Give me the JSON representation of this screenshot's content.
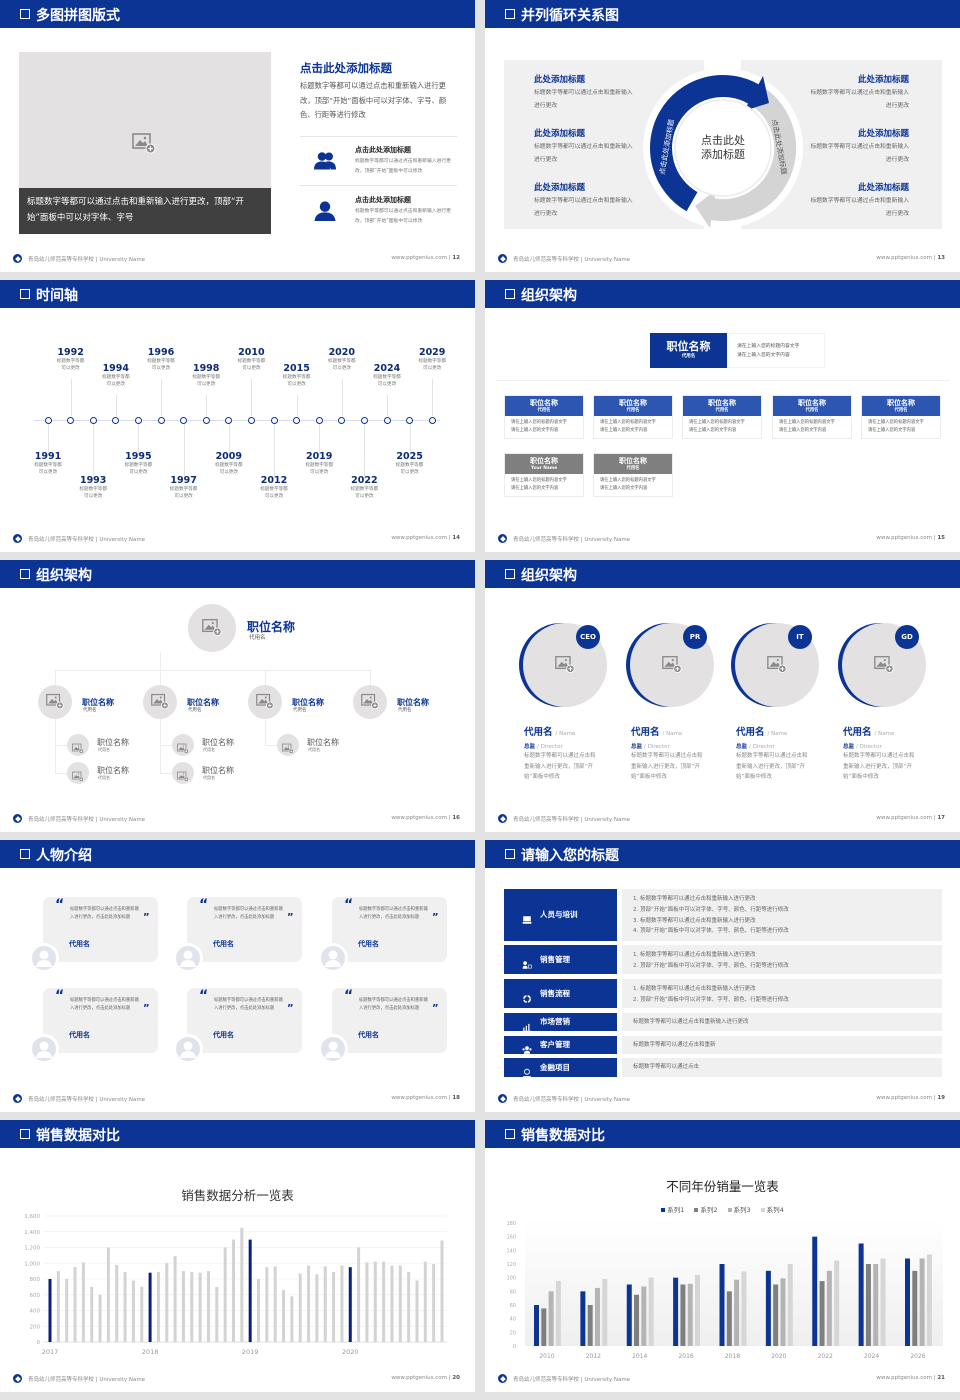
{
  "footer": {
    "school": "青岛幼儿师范高等专科学校 | University Name",
    "site": "www.pptgenius.com"
  },
  "colors": {
    "brand": "#0c3495",
    "header": "#0c3495",
    "panel": "#f0f0f0",
    "caption_bg": "#404040",
    "gray_box": "#7f7f7f"
  },
  "slides": [
    {
      "title": "多图拼图版式",
      "page": "12",
      "photo_caption": "标题数字等都可以通过点击和重新输入进行更改，顶部“开始”面板中可以对字体、字号",
      "heading": "点击此处添加标题",
      "paragraph": "标题数字等都可以通过点击和重新输入进行更改，顶部“开始”面板中可以对字体、字号、颜色、行距等进行修改",
      "items": [
        {
          "icon": "users-icon",
          "title": "点击此处添加标题",
          "desc": "标题数字等都可以通过点击和重新输入进行更改，顶部“开始”面板中可以修改"
        },
        {
          "icon": "user-icon",
          "title": "点击此处添加标题",
          "desc": "标题数字等都可以通过点击和重新输入进行更改，顶部“开始”面板中可以修改"
        }
      ]
    },
    {
      "title": "并列循环关系图",
      "page": "13",
      "center_line1": "点击此处",
      "center_line2": "添加标题",
      "arc_left": "点击此处添加标题",
      "arc_right": "点击此处添加标题",
      "left_items": [
        {
          "title": "此处添加标题",
          "desc": "标题数字等都可以通过点击和重新输入进行更改"
        },
        {
          "title": "此处添加标题",
          "desc": "标题数字等都可以通过点击和重新输入进行更改"
        },
        {
          "title": "此处添加标题",
          "desc": "标题数字等都可以通过点击和重新输入进行更改"
        }
      ],
      "right_items": [
        {
          "title": "此处添加标题",
          "desc": "标题数字等都可以通过点击和重新输入进行更改"
        },
        {
          "title": "此处添加标题",
          "desc": "标题数字等都可以通过点击和重新输入进行更改"
        },
        {
          "title": "此处添加标题",
          "desc": "标题数字等都可以通过点击和重新输入进行更改"
        }
      ]
    },
    {
      "title": "时间轴",
      "page": "14",
      "events": [
        {
          "year": "1991",
          "desc1": "标题数字等都",
          "desc2": "可以更改"
        },
        {
          "year": "1992",
          "desc1": "标题数字等都",
          "desc2": "可以更改"
        },
        {
          "year": "1993",
          "desc1": "标题数字等都",
          "desc2": "可以更改"
        },
        {
          "year": "1994",
          "desc1": "标题数字等都",
          "desc2": "可以更改"
        },
        {
          "year": "1995",
          "desc1": "标题数字等都",
          "desc2": "可以更改"
        },
        {
          "year": "1996",
          "desc1": "标题数字等都",
          "desc2": "可以更改"
        },
        {
          "year": "1997",
          "desc1": "标题数字等都",
          "desc2": "可以更改"
        },
        {
          "year": "1998",
          "desc1": "标题数字等都",
          "desc2": "可以更改"
        },
        {
          "year": "2009",
          "desc1": "标题数字等都",
          "desc2": "可以更改"
        },
        {
          "year": "2010",
          "desc1": "标题数字等都",
          "desc2": "可以更改"
        },
        {
          "year": "2012",
          "desc1": "标题数字等都",
          "desc2": "可以更改"
        },
        {
          "year": "2015",
          "desc1": "标题数字等都",
          "desc2": "可以更改"
        },
        {
          "year": "2019",
          "desc1": "标题数字等都",
          "desc2": "可以更改"
        },
        {
          "year": "2020",
          "desc1": "标题数字等都",
          "desc2": "可以更改"
        },
        {
          "year": "2022",
          "desc1": "标题数字等都",
          "desc2": "可以更改"
        },
        {
          "year": "2024",
          "desc1": "标题数字等都",
          "desc2": "可以更改"
        },
        {
          "year": "2025",
          "desc1": "标题数字等都",
          "desc2": "可以更改"
        },
        {
          "year": "2029",
          "desc1": "标题数字等都",
          "desc2": "可以更改"
        }
      ]
    },
    {
      "title": "组织架构",
      "page": "15",
      "top": {
        "title": "职位名称",
        "sub": "代用名",
        "desc1": "请在上输入您的标题内容文字",
        "desc2": "请在上输入您的文字内容"
      },
      "boxes": [
        {
          "title": "职位名称",
          "sub": "代用名",
          "desc1": "请在上输入您的标题内容文字",
          "desc2": "请在上输入您的文字内容",
          "style": "blue"
        },
        {
          "title": "职位名称",
          "sub": "代用名",
          "desc1": "请在上输入您的标题内容文字",
          "desc2": "请在上输入您的文字内容",
          "style": "blue"
        },
        {
          "title": "职位名称",
          "sub": "代用名",
          "desc1": "请在上输入您的标题内容文字",
          "desc2": "请在上输入您的文字内容",
          "style": "blue"
        },
        {
          "title": "职位名称",
          "sub": "代用名",
          "desc1": "请在上输入您的标题内容文字",
          "desc2": "请在上输入您的文字内容",
          "style": "blue"
        },
        {
          "title": "职位名称",
          "sub": "代用名",
          "desc1": "请在上输入您的标题内容文字",
          "desc2": "请在上输入您的文字内容",
          "style": "blue"
        },
        {
          "title": "职位名称",
          "sub": "Your Name",
          "desc1": "请在上输入您的标题内容文字",
          "desc2": "请在上输入您的文字内容",
          "style": "gray"
        },
        {
          "title": "职位名称",
          "sub": "代用名",
          "desc1": "请在上输入您的标题内容文字",
          "desc2": "请在上输入您的文字内容",
          "style": "gray"
        }
      ]
    },
    {
      "title": "组织架构",
      "page": "16",
      "top": {
        "title": "职位名称",
        "sub": "代用名"
      },
      "branches": [
        {
          "title": "职位名称",
          "sub": "代用名",
          "children": [
            {
              "title": "职位名称",
              "sub": "代用名"
            },
            {
              "title": "职位名称",
              "sub": "代用名"
            }
          ]
        },
        {
          "title": "职位名称",
          "sub": "代用名",
          "children": [
            {
              "title": "职位名称",
              "sub": "代用名"
            },
            {
              "title": "职位名称",
              "sub": "代用名"
            }
          ]
        },
        {
          "title": "职位名称",
          "sub": "代用名",
          "children": [
            {
              "title": "职位名称",
              "sub": "代用名"
            }
          ]
        },
        {
          "title": "职位名称",
          "sub": "代用名",
          "children": []
        }
      ]
    },
    {
      "title": "组织架构",
      "page": "17",
      "members": [
        {
          "badge": "CEO",
          "name": "代用名",
          "name_en": "/ Name",
          "role": "总监",
          "role_en": "/  Director",
          "desc": "标题数字等都可以通过点击和重新输入进行更改，顶部“开始”面板中修改"
        },
        {
          "badge": "PR",
          "name": "代用名",
          "name_en": "/ Name",
          "role": "总监",
          "role_en": "/  Director",
          "desc": "标题数字等都可以通过点击和重新输入进行更改，顶部“开始”面板中修改"
        },
        {
          "badge": "IT",
          "name": "代用名",
          "name_en": "/ Name",
          "role": "总监",
          "role_en": "/  Director",
          "desc": "标题数字等都可以通过点击和重新输入进行更改，顶部“开始”面板中修改"
        },
        {
          "badge": "GD",
          "name": "代用名",
          "name_en": "/ Name",
          "role": "总监",
          "role_en": "/  Director",
          "desc": "标题数字等都可以通过点击和重新输入进行更改，顶部“开始”面板中修改"
        }
      ]
    },
    {
      "title": "人物介绍",
      "page": "18",
      "quotes": [
        {
          "text": "标题数字等都可以通过点击和重新输入进行更改，点击此处添加标题",
          "name": "代用名"
        },
        {
          "text": "标题数字等都可以通过点击和重新输入进行更改，点击此处添加标题",
          "name": "代用名"
        },
        {
          "text": "标题数字等都可以通过点击和重新输入进行更改，点击此处添加标题",
          "name": "代用名"
        },
        {
          "text": "标题数字等都可以通过点击和重新输入进行更改，点击此处添加标题",
          "name": "代用名"
        },
        {
          "text": "标题数字等都可以通过点击和重新输入进行更改，点击此处添加标题",
          "name": "代用名"
        },
        {
          "text": "标题数字等都可以通过点击和重新输入进行更改，点击此处添加标题",
          "name": "代用名"
        }
      ]
    },
    {
      "title": "请输入您的标题",
      "page": "19",
      "rows": [
        {
          "label": "人员与培训",
          "icon": "training-icon",
          "lines": [
            "1.   标题数字等都可以通过点击和重新输入进行更改",
            "2.   顶部“开始”面板中可以对字体、字号、颜色、行距等进行修改",
            "3.   标题数字等都可以通过点击和重新输入进行更改",
            "4.   顶部“开始”面板中可以对字体、字号、颜色、行距等进行修改"
          ]
        },
        {
          "label": "销售管理",
          "icon": "sales-manager-icon",
          "lines": [
            "1.   标题数字等都可以通过点击和重新输入进行更改",
            "2.   顶部“开始”面板中可以对字体、字号、颜色、行距等进行修改"
          ]
        },
        {
          "label": "销售流程",
          "icon": "cycle-icon",
          "lines": [
            "1.   标题数字等都可以通过点击和重新输入进行更改",
            "2.   顶部“开始”面板中可以对字体、字号、颜色、行距等进行修改"
          ]
        },
        {
          "label": "市场营销",
          "icon": "bar-chart-icon",
          "lines": [
            "标题数字等都可以通过点击和重新输入进行更改"
          ]
        },
        {
          "label": "客户管理",
          "icon": "customers-icon",
          "lines": [
            "标题数字等都可以通过点击和重新"
          ]
        },
        {
          "label": "金融项目",
          "icon": "finance-icon",
          "lines": [
            "标题数字等都可以通过点击"
          ]
        }
      ]
    },
    {
      "title": "销售数据对比",
      "page": "20"
    },
    {
      "title": "销售数据对比",
      "page": "21"
    }
  ],
  "chart_data": [
    {
      "type": "bar",
      "title": "销售数据分析一览表",
      "x_tick_labels": [
        "2017",
        "2018",
        "2019",
        "2020"
      ],
      "values": [
        800,
        900,
        800,
        950,
        1010,
        700,
        600,
        1200,
        980,
        890,
        780,
        700,
        880,
        890,
        1000,
        1090,
        900,
        890,
        880,
        900,
        700,
        1200,
        1300,
        1450,
        1300,
        800,
        950,
        960,
        660,
        580,
        870,
        970,
        860,
        960,
        890,
        970,
        950,
        1200,
        1010,
        1020,
        1020,
        970,
        970,
        890,
        780,
        1020,
        990,
        1290
      ],
      "highlighted_indices": [
        0,
        12,
        24,
        36
      ],
      "bar_color": "#d3d3d3",
      "highlight_color": "#0a1f7a",
      "ylim": [
        0,
        1600
      ],
      "ytick_step": 200,
      "grid": true
    },
    {
      "type": "bar",
      "title": "不同年份销量一览表",
      "categories": [
        "2010",
        "2012",
        "2014",
        "2016",
        "2018",
        "2020",
        "2022",
        "2024",
        "2026"
      ],
      "series": [
        {
          "name": "系列1",
          "color": "#0c3495",
          "values": [
            60,
            80,
            90,
            100,
            120,
            110,
            160,
            150,
            128
          ]
        },
        {
          "name": "系列2",
          "color": "#7f7f7f",
          "values": [
            55,
            60,
            75,
            90,
            80,
            90,
            95,
            120,
            110
          ]
        },
        {
          "name": "系列3",
          "color": "#b4b4b4",
          "values": [
            80,
            85,
            87,
            91,
            97,
            99,
            110,
            120,
            128
          ]
        },
        {
          "name": "系列4",
          "color": "#d6d6d6",
          "values": [
            95,
            98,
            100,
            104,
            109,
            120,
            125,
            128,
            134
          ]
        }
      ],
      "ylim": [
        0,
        180
      ],
      "ytick_step": 20,
      "legend": "top-center",
      "grid": false
    }
  ]
}
